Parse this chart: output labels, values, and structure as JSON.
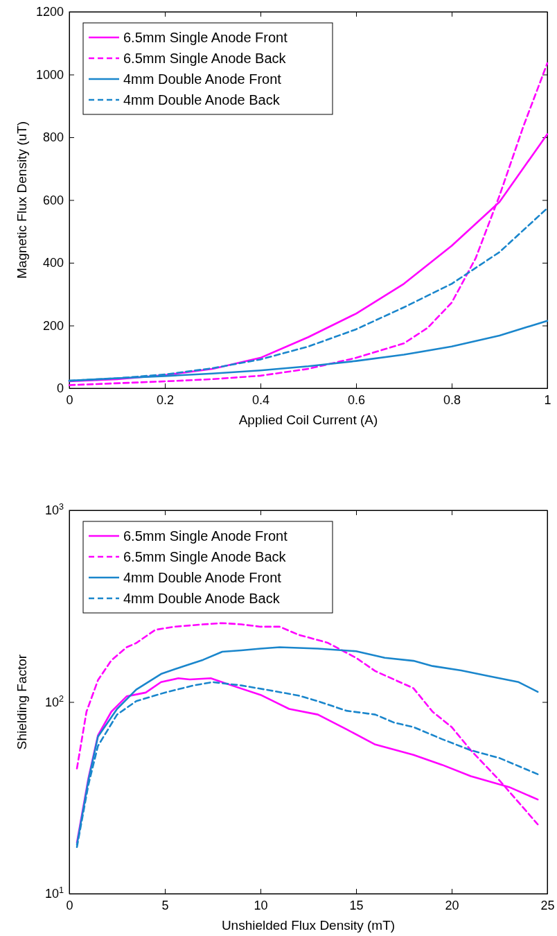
{
  "chart_data": [
    {
      "type": "line",
      "xlabel": "Applied Coil Current (A)",
      "ylabel": "Magnetic Flux Density (uT)",
      "xlim": [
        0,
        1
      ],
      "xticks": [
        0,
        0.2,
        0.4,
        0.6,
        0.8,
        1
      ],
      "ylim": [
        0,
        1200
      ],
      "yticks": [
        0,
        200,
        400,
        600,
        800,
        1000,
        1200
      ],
      "legend": "top left",
      "grid": false,
      "marker": "none",
      "series": [
        {
          "name": "6.5mm Single Anode Front",
          "color": "#ff00ff",
          "line_style": "solid",
          "x": [
            0,
            0.1,
            0.2,
            0.3,
            0.4,
            0.5,
            0.6,
            0.7,
            0.8,
            0.9,
            1
          ],
          "values": [
            22,
            29,
            42,
            62,
            97,
            163,
            238,
            333,
            454,
            594,
            810
          ]
        },
        {
          "name": "6.5mm Single Anode Back",
          "color": "#ff00ff",
          "line_style": "dashed",
          "x": [
            0,
            0.2,
            0.3,
            0.4,
            0.5,
            0.6,
            0.7,
            0.75,
            0.8,
            0.85,
            0.9,
            0.95,
            1
          ],
          "values": [
            10,
            22,
            29,
            40,
            62,
            97,
            143,
            193,
            273,
            414,
            614,
            835,
            1036
          ]
        },
        {
          "name": "4mm Double Anode Front",
          "color": "#1a86cc",
          "line_style": "solid",
          "x": [
            0,
            0.1,
            0.2,
            0.3,
            0.4,
            0.5,
            0.6,
            0.7,
            0.8,
            0.9,
            1
          ],
          "values": [
            24,
            32,
            39,
            47,
            57,
            70,
            87,
            107,
            133,
            168,
            215
          ]
        },
        {
          "name": "4mm Double Anode Back",
          "color": "#1a86cc",
          "line_style": "dashed",
          "x": [
            0,
            0.1,
            0.2,
            0.3,
            0.4,
            0.5,
            0.6,
            0.7,
            0.8,
            0.9,
            1
          ],
          "values": [
            24,
            32,
            44,
            64,
            92,
            133,
            188,
            258,
            333,
            434,
            574
          ]
        }
      ]
    },
    {
      "type": "line",
      "xlabel": "Unshielded Flux Density (mT)",
      "ylabel": "Shielding Factor",
      "log": "y",
      "xlim": [
        0,
        25
      ],
      "xticks": [
        0,
        5,
        10,
        15,
        20,
        25
      ],
      "ylim": [
        10,
        1000
      ],
      "yticks": [
        {
          "value": 10,
          "label": "10$^{1}$"
        },
        {
          "value": 100,
          "label": "10$^{2}$"
        },
        {
          "value": 1000,
          "label": "10$^{3}$"
        }
      ],
      "legend": "top left",
      "grid": false,
      "marker": "none",
      "series": [
        {
          "name": "6.5mm Single Anode Front",
          "color": "#ff00ff",
          "line_style": "solid",
          "x": [
            0.4,
            1,
            1.5,
            2.2,
            3,
            4,
            4.8,
            5.7,
            6.3,
            7.4,
            8.5,
            10,
            11.5,
            13,
            14.5,
            16,
            18,
            19.5,
            21,
            23,
            24.5
          ],
          "values": [
            18.5,
            40,
            67,
            89,
            107,
            112,
            127,
            133,
            131,
            133,
            122,
            109,
            92,
            86,
            72,
            60,
            53,
            47,
            41,
            36,
            31
          ]
        },
        {
          "name": "6.5mm Single Anode Back",
          "color": "#ff00ff",
          "line_style": "dashed",
          "x": [
            0.4,
            0.9,
            1.5,
            2.2,
            3,
            3.5,
            4.5,
            5.5,
            7,
            8,
            9,
            10,
            11,
            12,
            13.5,
            15,
            16,
            18,
            19,
            20,
            21,
            22.5,
            24.5
          ],
          "values": [
            45,
            89,
            130,
            165,
            193,
            203,
            238,
            247,
            254,
            258,
            254,
            247,
            247,
            224,
            204,
            170,
            145,
            118,
            89,
            74,
            56,
            39,
            23
          ]
        },
        {
          "name": "4mm Double Anode Front",
          "color": "#1a86cc",
          "line_style": "solid",
          "x": [
            0.4,
            1,
            1.5,
            2.5,
            3.5,
            4.8,
            6,
            7,
            8,
            9,
            10,
            11,
            13,
            15,
            16.5,
            18,
            19,
            20.5,
            22,
            23.5,
            24.5
          ],
          "values": [
            18,
            39,
            66,
            92,
            116,
            140,
            154,
            166,
            183,
            186,
            190,
            193,
            190,
            184,
            170,
            164,
            154,
            146,
            136,
            127,
            113
          ]
        },
        {
          "name": "4mm Double Anode Back",
          "color": "#1a86cc",
          "line_style": "dashed",
          "x": [
            0.4,
            1,
            1.5,
            2.5,
            3.5,
            5,
            6.5,
            7.5,
            9,
            10.5,
            12,
            13,
            14.5,
            16,
            17,
            18,
            19.5,
            21,
            22.5,
            24.5
          ],
          "values": [
            17.5,
            37,
            59,
            86,
            101,
            112,
            122,
            127,
            122,
            115,
            108,
            101,
            90,
            86,
            78,
            74,
            64,
            56,
            51,
            42
          ]
        }
      ]
    }
  ]
}
